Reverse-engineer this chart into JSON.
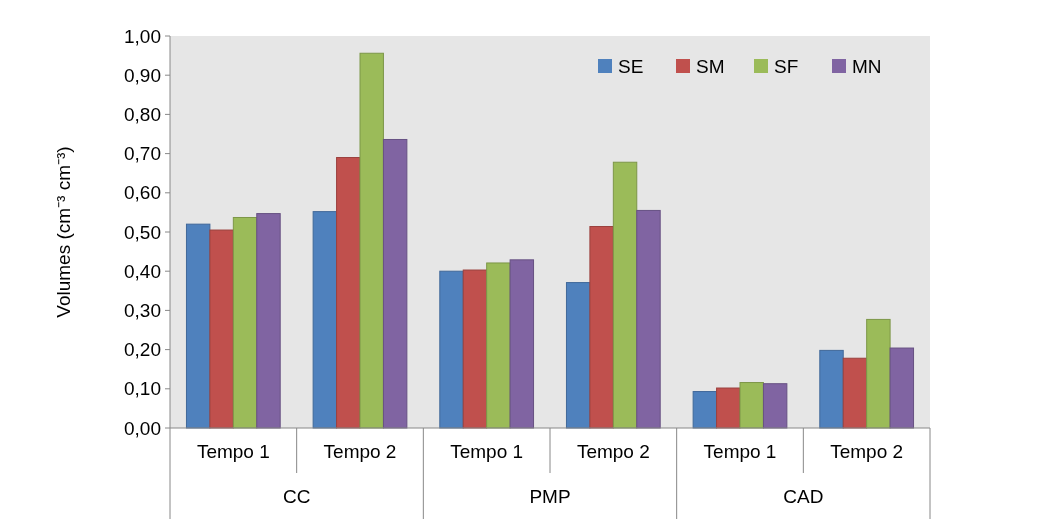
{
  "chart_data": {
    "type": "bar",
    "ylabel": "Volumes (cm⁻³ cm⁻³)",
    "categories": [
      "Tempo 1",
      "Tempo 2",
      "Tempo 1",
      "Tempo 2",
      "Tempo 1",
      "Tempo 2"
    ],
    "annotations": [
      "CC",
      "PMP",
      "CAD"
    ],
    "series": [
      {
        "name": "SE",
        "color": "#4f81bd",
        "values": [
          0.52,
          0.552,
          0.4,
          0.371,
          0.093,
          0.198
        ]
      },
      {
        "name": "SM",
        "color": "#c0504d",
        "values": [
          0.505,
          0.69,
          0.403,
          0.514,
          0.102,
          0.178
        ]
      },
      {
        "name": "SF",
        "color": "#9bbb59",
        "values": [
          0.537,
          0.956,
          0.421,
          0.678,
          0.116,
          0.277
        ]
      },
      {
        "name": "MN",
        "color": "#8064a2",
        "values": [
          0.547,
          0.736,
          0.429,
          0.555,
          0.113,
          0.204
        ]
      }
    ],
    "ylim": [
      0,
      1
    ],
    "yticks": [
      {
        "value": 0,
        "label": "0,00"
      },
      {
        "value": 0.1,
        "label": "0,10"
      },
      {
        "value": 0.2,
        "label": "0,20"
      },
      {
        "value": 0.3,
        "label": "0,30"
      },
      {
        "value": 0.4,
        "label": "0,40"
      },
      {
        "value": 0.5,
        "label": "0,50"
      },
      {
        "value": 0.6,
        "label": "0,60"
      },
      {
        "value": 0.7,
        "label": "0,70"
      },
      {
        "value": 0.8,
        "label": "0,80"
      },
      {
        "value": 0.9,
        "label": "0,90"
      },
      {
        "value": 1,
        "label": "1,00"
      }
    ],
    "grid": false,
    "legend": "top right"
  }
}
